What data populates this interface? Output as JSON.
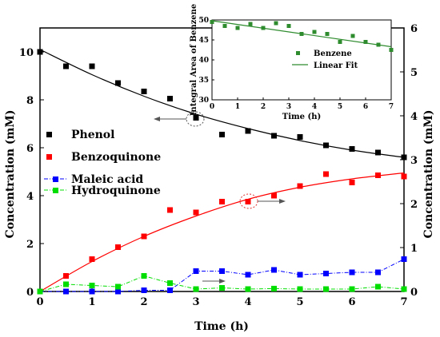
{
  "chart_data": [
    {
      "type": "scatter",
      "xlabel": "Time (h)",
      "ylabel": "Concentration (mM)",
      "ylabel_right": "Concentration (mM)",
      "xlim": [
        0,
        7
      ],
      "ylim": [
        0,
        11
      ],
      "ylim_right": [
        0,
        6
      ],
      "x_ticks": [
        "0",
        "1",
        "2",
        "3",
        "4",
        "5",
        "6",
        "7"
      ],
      "y_ticks": [
        "0",
        "2",
        "4",
        "6",
        "8",
        "10"
      ],
      "y_ticks_right": [
        "0",
        "1",
        "2",
        "3",
        "4",
        "5",
        "6"
      ],
      "legend_position": "center-left",
      "series": [
        {
          "name": "Phenol",
          "color": "#000000",
          "marker": "square",
          "axis": "left",
          "x": [
            0,
            0.5,
            1,
            1.5,
            2,
            2.5,
            3,
            3.5,
            4,
            4.5,
            5,
            5.5,
            6,
            6.5,
            7
          ],
          "y": [
            10.0,
            9.4,
            9.4,
            8.7,
            8.35,
            8.05,
            7.25,
            6.55,
            6.7,
            6.5,
            6.45,
            6.1,
            5.95,
            5.8,
            5.6
          ],
          "fit": {
            "style": "solid",
            "x": [
              0,
              1,
              2,
              3,
              4,
              5,
              6,
              7
            ],
            "y": [
              10.1,
              9.05,
              8.15,
              7.4,
              6.8,
              6.3,
              5.9,
              5.6
            ]
          }
        },
        {
          "name": "Benzoquinone",
          "color": "#ff0000",
          "marker": "square",
          "axis": "left",
          "x": [
            0,
            0.5,
            1,
            1.5,
            2,
            2.5,
            3,
            3.5,
            4,
            4.5,
            5,
            5.5,
            6,
            6.5,
            7
          ],
          "y": [
            0,
            0.65,
            1.35,
            1.85,
            2.3,
            3.4,
            3.3,
            3.75,
            3.75,
            4.0,
            4.4,
            4.9,
            4.55,
            4.85,
            4.8
          ],
          "fit": {
            "style": "solid",
            "x": [
              0,
              1,
              2,
              3,
              4,
              5,
              6,
              7
            ],
            "y": [
              0,
              1.25,
              2.3,
              3.15,
              3.85,
              4.35,
              4.7,
              4.95
            ]
          }
        },
        {
          "name": "Maleic acid",
          "color": "#0000ff",
          "marker": "square",
          "axis": "left",
          "line": "dashdot",
          "x": [
            0,
            0.5,
            1,
            1.5,
            2,
            2.5,
            3,
            3.5,
            4,
            4.5,
            5,
            5.5,
            6,
            6.5,
            7
          ],
          "y": [
            0,
            0,
            0,
            0,
            0.05,
            0.05,
            0.85,
            0.85,
            0.7,
            0.9,
            0.7,
            0.75,
            0.8,
            0.8,
            1.35
          ]
        },
        {
          "name": "Hydroquinone",
          "color": "#00dd00",
          "marker": "square",
          "axis": "left",
          "line": "dashdot",
          "x": [
            0,
            0.5,
            1,
            1.5,
            2,
            2.5,
            3,
            3.5,
            4,
            4.5,
            5,
            5.5,
            6,
            6.5,
            7
          ],
          "y": [
            0,
            0.3,
            0.25,
            0.2,
            0.65,
            0.35,
            0.1,
            0.15,
            0.1,
            0.12,
            0.1,
            0.1,
            0.1,
            0.2,
            0.1
          ]
        }
      ]
    },
    {
      "type": "scatter",
      "position": "inset-top-right",
      "xlabel": "Time (h)",
      "ylabel": "Integral Area of Benzene",
      "xlim": [
        0,
        7
      ],
      "ylim": [
        30,
        50
      ],
      "x_ticks": [
        "0",
        "1",
        "2",
        "3",
        "4",
        "5",
        "6",
        "7"
      ],
      "y_ticks": [
        "30",
        "35",
        "40",
        "45",
        "50"
      ],
      "legend_position": "lower-right",
      "series": [
        {
          "name": "Benzene",
          "color": "#2e8b2e",
          "marker": "square",
          "x": [
            0,
            0.5,
            1,
            1.5,
            2,
            2.5,
            3,
            3.5,
            4,
            4.5,
            5,
            5.5,
            6,
            6.5,
            7
          ],
          "y": [
            49.5,
            48.5,
            48.0,
            49.0,
            48.0,
            49.2,
            48.5,
            46.5,
            47.0,
            46.5,
            44.5,
            46.0,
            44.5,
            43.8,
            42.5
          ]
        },
        {
          "name": "Linear Fit",
          "color": "#2e8b2e",
          "kind": "line",
          "x": [
            0,
            7
          ],
          "y": [
            49.8,
            43.3
          ]
        }
      ]
    }
  ]
}
